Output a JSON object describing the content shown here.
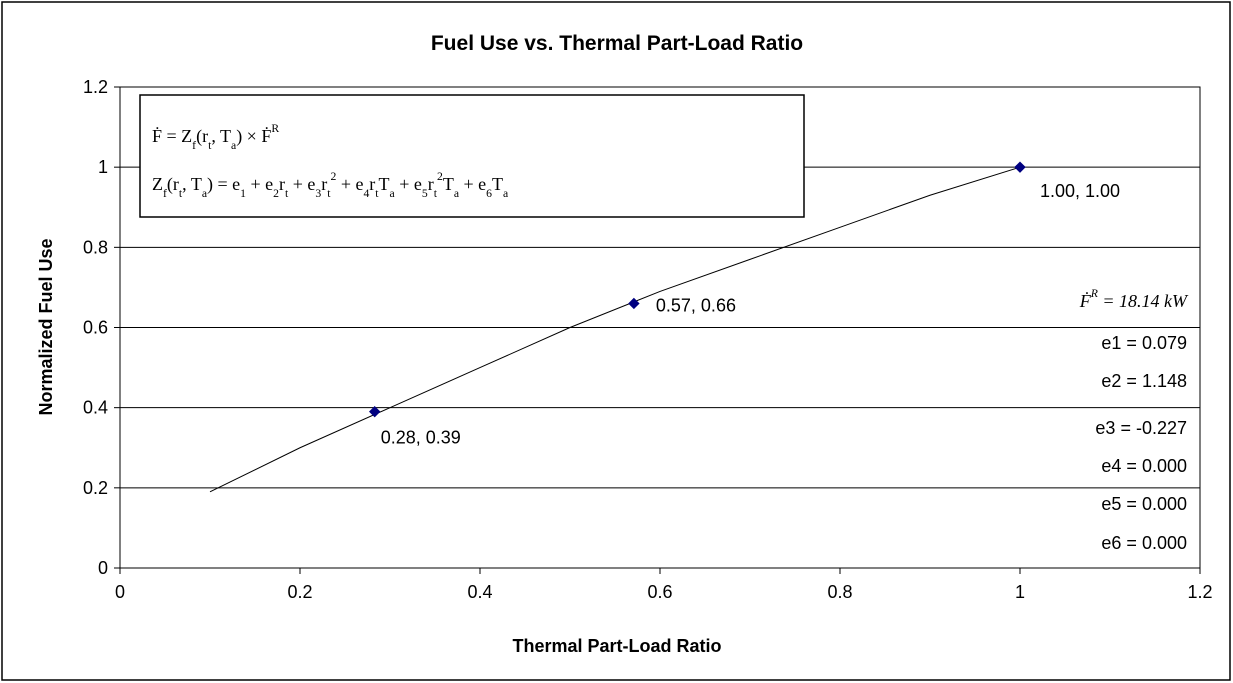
{
  "chart_data": {
    "type": "scatter",
    "title": "Fuel Use vs. Thermal Part-Load Ratio",
    "x_label": "Thermal Part-Load Ratio",
    "y_label": "Normalized Fuel Use",
    "xlim": [
      0,
      1.2
    ],
    "ylim": [
      0,
      1.2
    ],
    "xticks": [
      0,
      0.2,
      0.4,
      0.6,
      0.8,
      1,
      1.2
    ],
    "yticks": [
      0,
      0.2,
      0.4,
      0.6,
      0.8,
      1,
      1.2
    ],
    "grid": true,
    "series": [
      {
        "color": "#000080",
        "marker": "diamond",
        "x": [
          0.283,
          0.571,
          1.0
        ],
        "values": [
          0.39,
          0.66,
          1.0
        ],
        "value_labels": [
          "0.28, 0.39",
          "0.57, 0.66",
          "1.00, 1.00"
        ]
      },
      {
        "color": "#000000",
        "marker": "line",
        "x": [
          0.1,
          0.2,
          0.3,
          0.4,
          0.5,
          0.6,
          0.7,
          0.8,
          0.9,
          1.0
        ],
        "values": [
          0.19,
          0.3,
          0.4,
          0.5,
          0.6,
          0.69,
          0.77,
          0.85,
          0.93,
          1.0
        ]
      }
    ],
    "annotations": {
      "equations": [
        [
          {
            "t": "Ḟ = Z"
          },
          {
            "t": "f",
            "s": "sub"
          },
          {
            "t": "(r"
          },
          {
            "t": "t",
            "s": "sub"
          },
          {
            "t": ", T"
          },
          {
            "t": "a",
            "s": "sub"
          },
          {
            "t": ") × Ḟ"
          },
          {
            "t": "R",
            "s": "sup"
          }
        ],
        [
          {
            "t": "Z"
          },
          {
            "t": "f",
            "s": "sub"
          },
          {
            "t": "(r"
          },
          {
            "t": "t",
            "s": "sub"
          },
          {
            "t": ", T"
          },
          {
            "t": "a",
            "s": "sub"
          },
          {
            "t": ") = e"
          },
          {
            "t": "1",
            "s": "sub"
          },
          {
            "t": " + e"
          },
          {
            "t": "2",
            "s": "sub"
          },
          {
            "t": "r"
          },
          {
            "t": "t",
            "s": "sub"
          },
          {
            "t": " + e"
          },
          {
            "t": "3",
            "s": "sub"
          },
          {
            "t": "r"
          },
          {
            "t": "t",
            "s": "sub"
          },
          {
            "t": "2",
            "s": "sup"
          },
          {
            "t": " + e"
          },
          {
            "t": "4",
            "s": "sub"
          },
          {
            "t": "r"
          },
          {
            "t": "t",
            "s": "sub"
          },
          {
            "t": "T"
          },
          {
            "t": "a",
            "s": "sub"
          },
          {
            "t": " + e"
          },
          {
            "t": "5",
            "s": "sub"
          },
          {
            "t": "r"
          },
          {
            "t": "t",
            "s": "sub"
          },
          {
            "t": "2",
            "s": "sup"
          },
          {
            "t": "T"
          },
          {
            "t": "a",
            "s": "sub"
          },
          {
            "t": " + e"
          },
          {
            "t": "6",
            "s": "sub"
          },
          {
            "t": "T"
          },
          {
            "t": "a",
            "s": "sub"
          }
        ]
      ],
      "rated": [
        {
          "t": "Ḟ"
        },
        {
          "t": "R",
          "s": "sup"
        },
        {
          "t": " = 18.14 kW"
        }
      ],
      "coefficients": [
        "e1 = 0.079",
        "e2 = 1.148",
        "e3 = -0.227",
        "e4 = 0.000",
        "e5 = 0.000",
        "e6 = 0.000"
      ]
    }
  }
}
